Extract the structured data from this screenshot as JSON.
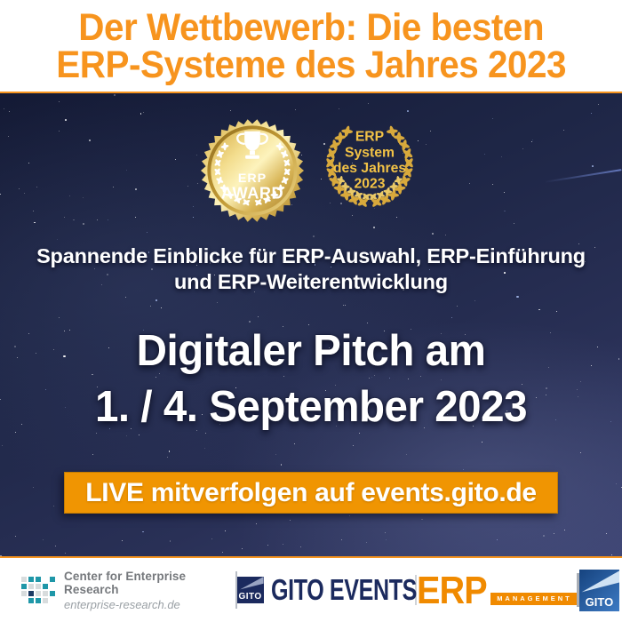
{
  "header": {
    "title_line1": "Der Wettbewerb: Die besten",
    "title_line2": "ERP-Systeme des Jahres 2023"
  },
  "badges": {
    "award_seal": {
      "line1": "ERP",
      "line2": "AWARD",
      "icon": "trophy-icon"
    },
    "laurel_wreath": {
      "lines": [
        "ERP",
        "System",
        "des Jahres",
        "2023"
      ]
    }
  },
  "tagline": {
    "line1": "Spannende Einblicke für ERP-Auswahl, ERP-Einführung",
    "line2": "und ERP-Weiterentwicklung"
  },
  "event": {
    "line1": "Digitaler Pitch am",
    "line2": "1. / 4. September 2023"
  },
  "cta": {
    "label": "LIVE mitverfolgen auf events.gito.de"
  },
  "footer": {
    "cer": {
      "name": "Center for Enterprise Research",
      "domain": "enterprise-research.de"
    },
    "gito_events": {
      "square_text": "GITO",
      "wordmark": "GITO EVENTS"
    },
    "erp_management": {
      "wordmark": "ERP",
      "sub": "MANAGEMENT"
    },
    "gito": {
      "square_text": "GITO"
    }
  },
  "colors": {
    "accent_orange": "#F7941E",
    "cta_orange": "#F09502",
    "erp_orange": "#F08A00",
    "navy_logo": "#1B2A5E",
    "teal_logo": "#1F97A8",
    "gold": "#D8A93C",
    "gold_text": "#F2C246",
    "sky_navy": "#232B52"
  }
}
